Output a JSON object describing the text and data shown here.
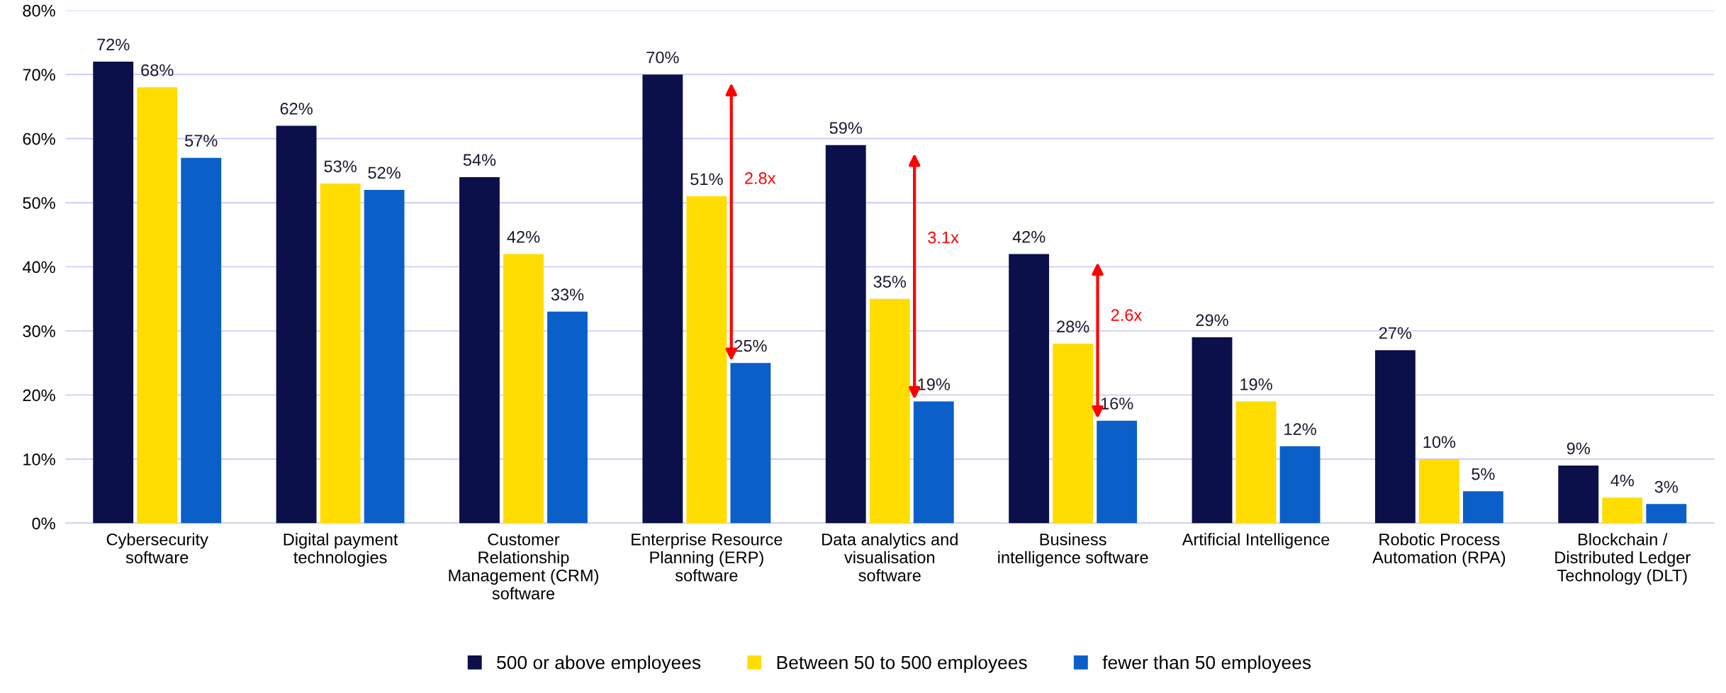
{
  "chart_data": {
    "type": "bar",
    "categories": [
      "Cybersecurity\nsoftware",
      "Digital payment\ntechnologies",
      "Customer\nRelationship\nManagement (CRM)\nsoftware",
      "Enterprise Resource\nPlanning (ERP)\nsoftware",
      "Data analytics and\nvisualisation\nsoftware",
      "Business\nintelligence software",
      "Artificial Intelligence",
      "Robotic Process\nAutomation (RPA)",
      "Blockchain /\nDistributed Ledger\nTechnology (DLT)"
    ],
    "series": [
      {
        "name": "500 or above employees",
        "color": "#0b0f4a",
        "values": [
          72,
          62,
          54,
          70,
          59,
          42,
          29,
          27,
          9
        ],
        "value_labels": [
          "72%",
          "62%",
          "54%",
          "70%",
          "59%",
          "42%",
          "29%",
          "27%",
          "9%"
        ]
      },
      {
        "name": "Between 50 to 500 employees",
        "color": "#ffdd00",
        "values": [
          68,
          53,
          42,
          51,
          35,
          28,
          19,
          10,
          4
        ],
        "value_labels": [
          "68%",
          "53%",
          "42%",
          "51%",
          "35%",
          "28%",
          "19%",
          "10%",
          "4%"
        ]
      },
      {
        "name": "fewer than 50 employees",
        "color": "#0b5fc9",
        "values": [
          57,
          52,
          33,
          25,
          19,
          16,
          12,
          5,
          3
        ],
        "value_labels": [
          "57%",
          "52%",
          "33%",
          "25%",
          "19%",
          "16%",
          "12%",
          "5%",
          "3%"
        ]
      }
    ],
    "ylim": [
      0,
      80
    ],
    "yticks": [
      {
        "value": 0,
        "label": "0%"
      },
      {
        "value": 10,
        "label": "10%"
      },
      {
        "value": 20,
        "label": "20%"
      },
      {
        "value": 30,
        "label": "30%"
      },
      {
        "value": 40,
        "label": "40%"
      },
      {
        "value": 50,
        "label": "50%"
      },
      {
        "value": 60,
        "label": "60%"
      },
      {
        "value": 70,
        "label": "70%"
      },
      {
        "value": 80,
        "label": "80%"
      }
    ],
    "grid": "y",
    "legend": "bottom",
    "annotations": [
      "2.8x",
      "3.1x",
      "2.6x"
    ]
  }
}
